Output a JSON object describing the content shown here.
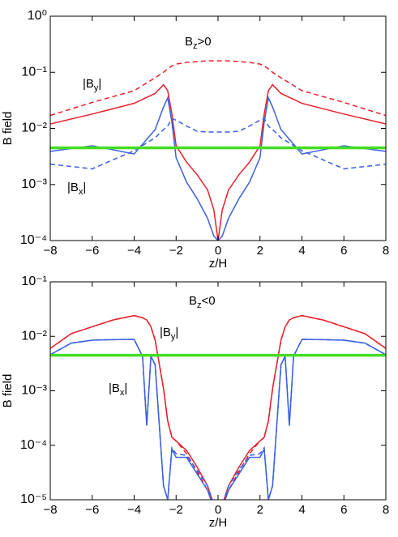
{
  "chart_data": [
    {
      "type": "line",
      "xlabel": "z/H",
      "ylabel": "B field",
      "yscale": "log",
      "xlim": [
        -8,
        8
      ],
      "ylim": [
        0.0001,
        1
      ],
      "xticks": [
        {
          "value": -8,
          "label": "−8"
        },
        {
          "value": -6,
          "label": "−6"
        },
        {
          "value": -4,
          "label": "−4"
        },
        {
          "value": -2,
          "label": "−2"
        },
        0,
        2,
        4,
        6,
        8
      ],
      "yticks": [
        {
          "value": 0.0001,
          "label": "10⁻⁴"
        },
        {
          "value": 0.001,
          "label": "10⁻³"
        },
        {
          "value": 0.01,
          "label": "10⁻²"
        },
        {
          "value": 0.1,
          "label": "10⁻¹"
        },
        {
          "value": 1,
          "label": "10⁰"
        }
      ],
      "annotations": [
        {
          "base": "B",
          "sub": "z",
          "suffix": ">0"
        },
        {
          "base": "|B",
          "sub": "y",
          "suffix": "|"
        },
        {
          "base": "|B",
          "sub": "x",
          "suffix": "|"
        }
      ],
      "x": [
        -8,
        -6,
        -4,
        -3,
        -2.6,
        -2.4,
        -2.2,
        -2,
        -1.5,
        -1,
        -0.5,
        -0.2,
        0,
        0.2,
        0.5,
        1,
        1.5,
        2,
        2.2,
        2.4,
        2.6,
        3,
        4,
        6,
        8
      ],
      "series": [
        {
          "color": "#e8202a",
          "dashed": true,
          "values": [
            0.017,
            0.029,
            0.047,
            0.08,
            0.1,
            0.115,
            0.13,
            0.14,
            0.15,
            0.155,
            0.16,
            0.16,
            0.16,
            0.16,
            0.16,
            0.155,
            0.15,
            0.14,
            0.13,
            0.115,
            0.1,
            0.08,
            0.047,
            0.029,
            0.017
          ]
        },
        {
          "color": "#e8202a",
          "dashed": false,
          "values": [
            0.012,
            0.018,
            0.028,
            0.042,
            0.06,
            0.047,
            0.018,
            0.0049,
            0.0025,
            0.0015,
            0.0008,
            0.00035,
            0.0001,
            0.00035,
            0.0008,
            0.0015,
            0.0025,
            0.0049,
            0.018,
            0.047,
            0.06,
            0.042,
            0.028,
            0.018,
            0.012
          ]
        },
        {
          "color": "#3a5fe0",
          "dashed": true,
          "values": [
            0.0023,
            0.0019,
            0.004,
            0.0068,
            0.0095,
            0.011,
            0.015,
            0.014,
            0.011,
            0.0089,
            0.0086,
            0.0086,
            0.0086,
            0.0086,
            0.0086,
            0.0089,
            0.011,
            0.014,
            0.015,
            0.011,
            0.0095,
            0.0068,
            0.004,
            0.0019,
            0.0023
          ]
        },
        {
          "color": "#3a5fe0",
          "dashed": false,
          "values": [
            0.0039,
            0.0049,
            0.0035,
            0.0095,
            0.024,
            0.035,
            0.013,
            0.003,
            0.0011,
            0.00056,
            0.00025,
            0.00012,
            0.0001,
            0.00012,
            0.00025,
            0.00056,
            0.0011,
            0.003,
            0.013,
            0.035,
            0.024,
            0.0095,
            0.0035,
            0.0049,
            0.0039
          ]
        },
        {
          "color": "#44dd22",
          "dashed": false,
          "thick": true,
          "values": [
            0.0045,
            0.0045,
            0.0045,
            0.0045,
            0.0045,
            0.0045,
            0.0045,
            0.0045,
            0.0045,
            0.0045,
            0.0045,
            0.0045,
            0.0045,
            0.0045,
            0.0045,
            0.0045,
            0.0045,
            0.0045,
            0.0045,
            0.0045,
            0.0045,
            0.0045,
            0.0045,
            0.0045,
            0.0045
          ]
        }
      ]
    },
    {
      "type": "line",
      "xlabel": "z/H",
      "ylabel": "B field",
      "yscale": "log",
      "xlim": [
        -8,
        8
      ],
      "ylim": [
        1e-05,
        0.1
      ],
      "xticks": [
        {
          "value": -8,
          "label": "−8"
        },
        {
          "value": -6,
          "label": "−6"
        },
        {
          "value": -4,
          "label": "−4"
        },
        {
          "value": -2,
          "label": "−2"
        },
        0,
        2,
        4,
        6,
        8
      ],
      "yticks": [
        {
          "value": 1e-05,
          "label": "10⁻⁵"
        },
        {
          "value": 0.0001,
          "label": "10⁻⁴"
        },
        {
          "value": 0.001,
          "label": "10⁻³"
        },
        {
          "value": 0.01,
          "label": "10⁻²"
        },
        {
          "value": 0.1,
          "label": "10⁻¹"
        }
      ],
      "annotations": [
        {
          "base": "B",
          "sub": "z",
          "suffix": "<0"
        },
        {
          "base": "|B",
          "sub": "y",
          "suffix": "|"
        },
        {
          "base": "|B",
          "sub": "x",
          "suffix": "|"
        }
      ],
      "x": [
        -8,
        -7,
        -6,
        -5,
        -4,
        -3.6,
        -3.4,
        -3.2,
        -3,
        -2.6,
        -2.4,
        -2.2,
        -2,
        -1.5,
        -1,
        -0.5,
        -0.2,
        0.2,
        0.5,
        1,
        1.5,
        2,
        2.2,
        2.4,
        2.6,
        3,
        3.2,
        3.4,
        3.6,
        4,
        5,
        6,
        7,
        8
      ],
      "series": [
        {
          "color": "#e8202a",
          "dashed": true,
          "values": [
            0.006,
            0.0112,
            0.015,
            0.02,
            0.024,
            0.022,
            0.02,
            0.015,
            0.0085,
            0.0011,
            0.00028,
            0.00014,
            0.00012,
            7e-05,
            3.3e-05,
            1.5e-05,
            8e-06,
            8e-06,
            1.5e-05,
            3.3e-05,
            7e-05,
            0.00012,
            0.00014,
            0.00028,
            0.0011,
            0.0085,
            0.015,
            0.02,
            0.022,
            0.024,
            0.02,
            0.015,
            0.0112,
            0.006
          ]
        },
        {
          "color": "#e8202a",
          "dashed": false,
          "values": [
            0.006,
            0.0112,
            0.015,
            0.02,
            0.024,
            0.022,
            0.02,
            0.015,
            0.0085,
            0.0011,
            0.00028,
            0.00014,
            0.00012,
            8e-05,
            4e-05,
            1.8e-05,
            8e-06,
            8e-06,
            1.8e-05,
            4e-05,
            8e-05,
            0.00012,
            0.00014,
            0.00028,
            0.0011,
            0.0085,
            0.015,
            0.02,
            0.022,
            0.024,
            0.02,
            0.015,
            0.0112,
            0.006
          ]
        },
        {
          "color": "#3a5fe0",
          "dashed": true,
          "values": [
            0.0046,
            0.0075,
            0.0085,
            0.0087,
            0.0088,
            0.0043,
            0.00023,
            0.0043,
            0.003,
            1.8e-05,
            1e-05,
            9e-05,
            7e-05,
            6.5e-05,
            3.5e-05,
            1.8e-05,
            8e-06,
            8e-06,
            1.8e-05,
            3.5e-05,
            6.5e-05,
            7e-05,
            9e-05,
            1e-05,
            1.8e-05,
            0.003,
            0.0043,
            0.00023,
            0.0043,
            0.0088,
            0.0087,
            0.0085,
            0.0075,
            0.0046
          ]
        },
        {
          "color": "#3a5fe0",
          "dashed": false,
          "values": [
            0.0046,
            0.0075,
            0.0085,
            0.0087,
            0.0088,
            0.0043,
            0.00023,
            0.0043,
            0.003,
            1.8e-05,
            1e-05,
            8.5e-05,
            6e-05,
            6e-05,
            3e-05,
            1.5e-05,
            7e-06,
            7e-06,
            1.5e-05,
            3e-05,
            6e-05,
            6e-05,
            8.5e-05,
            1e-05,
            1.8e-05,
            0.003,
            0.0043,
            0.00023,
            0.0043,
            0.0088,
            0.0087,
            0.0085,
            0.0075,
            0.0046
          ]
        },
        {
          "color": "#44dd22",
          "dashed": false,
          "thick": true,
          "values": [
            0.0045,
            0.0045,
            0.0045,
            0.0045,
            0.0045,
            0.0045,
            0.0045,
            0.0045,
            0.0045,
            0.0045,
            0.0045,
            0.0045,
            0.0045,
            0.0045,
            0.0045,
            0.0045,
            0.0045,
            0.0045,
            0.0045,
            0.0045,
            0.0045,
            0.0045,
            0.0045,
            0.0045,
            0.0045,
            0.0045,
            0.0045,
            0.0045,
            0.0045,
            0.0045,
            0.0045,
            0.0045,
            0.0045,
            0.0045
          ]
        }
      ]
    }
  ]
}
